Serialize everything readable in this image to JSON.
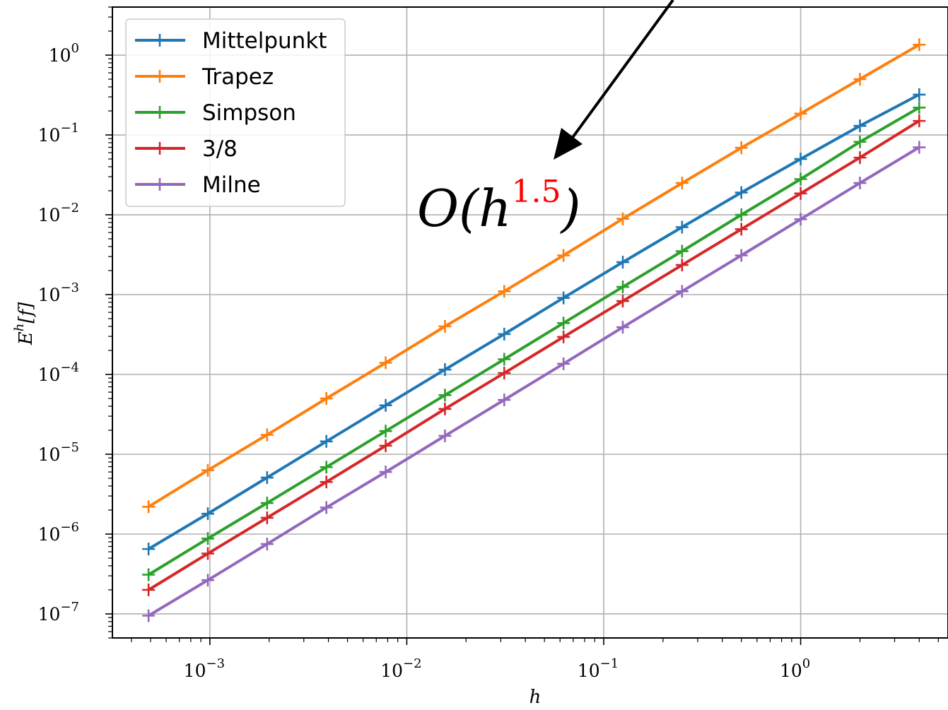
{
  "chart_data": {
    "type": "line",
    "xscale": "log",
    "yscale": "log",
    "xlabel": "h",
    "ylabel": "E^h[f]",
    "xlim": [
      0.00032,
      5.6
    ],
    "ylim": [
      5e-08,
      4
    ],
    "grid": true,
    "legend_position": "top-left",
    "x": [
      0.00048828125,
      0.0009765625,
      0.001953125,
      0.00390625,
      0.0078125,
      0.015625,
      0.03125,
      0.0625,
      0.125,
      0.25,
      0.5,
      1,
      2,
      4
    ],
    "series": [
      {
        "name": "Mittelpunkt",
        "color": "#1f77b4",
        "values": [
          6.5e-07,
          1.8e-06,
          5.1e-06,
          1.45e-05,
          4.1e-05,
          0.000115,
          0.00032,
          0.00091,
          0.00255,
          0.007,
          0.019,
          0.05,
          0.13,
          0.32
        ]
      },
      {
        "name": "Trapez",
        "color": "#ff7f0e",
        "values": [
          2.2e-06,
          6.3e-06,
          1.75e-05,
          5e-05,
          0.00014,
          0.0004,
          0.0011,
          0.0031,
          0.0089,
          0.025,
          0.069,
          0.185,
          0.5,
          1.35
        ]
      },
      {
        "name": "Simpson",
        "color": "#2ca02c",
        "values": [
          3.1e-07,
          8.8e-07,
          2.45e-06,
          6.9e-06,
          1.95e-05,
          5.5e-05,
          0.000155,
          0.00044,
          0.00125,
          0.0035,
          0.01,
          0.028,
          0.082,
          0.22
        ]
      },
      {
        "name": "3/8",
        "color": "#d62728",
        "values": [
          2e-07,
          5.7e-07,
          1.6e-06,
          4.5e-06,
          1.28e-05,
          3.7e-05,
          0.000104,
          0.000295,
          0.00083,
          0.00235,
          0.0066,
          0.0185,
          0.052,
          0.15
        ]
      },
      {
        "name": "Milne",
        "color": "#9467bd",
        "values": [
          9.5e-08,
          2.65e-07,
          7.5e-07,
          2.15e-06,
          6e-06,
          1.7e-05,
          4.8e-05,
          0.000136,
          0.00039,
          0.0011,
          0.0031,
          0.0088,
          0.025,
          0.07
        ]
      }
    ],
    "x_ticks": [
      {
        "base": "10",
        "exp": "−3",
        "value": 0.001
      },
      {
        "base": "10",
        "exp": "−2",
        "value": 0.01
      },
      {
        "base": "10",
        "exp": "−1",
        "value": 0.1
      },
      {
        "base": "10",
        "exp": "0",
        "value": 1
      }
    ],
    "y_ticks": [
      {
        "base": "10",
        "exp": "0",
        "value": 1
      },
      {
        "base": "10",
        "exp": "−1",
        "value": 0.1
      },
      {
        "base": "10",
        "exp": "−2",
        "value": 0.01
      },
      {
        "base": "10",
        "exp": "−3",
        "value": 0.001
      },
      {
        "base": "10",
        "exp": "−4",
        "value": 0.0001
      },
      {
        "base": "10",
        "exp": "−5",
        "value": 1e-05
      },
      {
        "base": "10",
        "exp": "−6",
        "value": 1e-06
      },
      {
        "base": "10",
        "exp": "−7",
        "value": 1e-07
      }
    ],
    "annotation": {
      "prefix": "O(h",
      "exponent": "1.5",
      "suffix": ")",
      "exponent_color": "#ff0000"
    }
  }
}
